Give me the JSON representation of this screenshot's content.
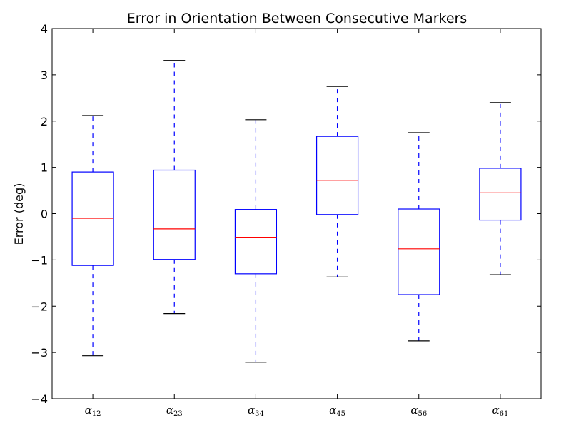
{
  "chart_data": {
    "type": "box",
    "title": "Error in Orientation Between Consecutive Markers",
    "xlabel": "",
    "ylabel": "Error (deg)",
    "ylim": [
      -4,
      4
    ],
    "yticks": [
      -4,
      -3,
      -2,
      -1,
      0,
      1,
      2,
      3,
      4
    ],
    "ytick_labels": [
      "−4",
      "−3",
      "−2",
      "−1",
      "0",
      "1",
      "2",
      "3",
      "4"
    ],
    "grid": false,
    "colors": {
      "box": "#0000ff",
      "median": "#ff0000",
      "whisker": "#0000ff",
      "cap": "#000000"
    },
    "categories": [
      {
        "symbol": "α",
        "sub": "12"
      },
      {
        "symbol": "α",
        "sub": "23"
      },
      {
        "symbol": "α",
        "sub": "34"
      },
      {
        "symbol": "α",
        "sub": "45"
      },
      {
        "symbol": "α",
        "sub": "56"
      },
      {
        "symbol": "α",
        "sub": "61"
      }
    ],
    "boxes": [
      {
        "whisker_low": -3.07,
        "q1": -1.12,
        "median": -0.1,
        "q3": 0.9,
        "whisker_high": 2.12
      },
      {
        "whisker_low": -2.16,
        "q1": -0.99,
        "median": -0.33,
        "q3": 0.94,
        "whisker_high": 3.31
      },
      {
        "whisker_low": -3.21,
        "q1": -1.3,
        "median": -0.51,
        "q3": 0.09,
        "whisker_high": 2.03
      },
      {
        "whisker_low": -1.37,
        "q1": -0.02,
        "median": 0.72,
        "q3": 1.67,
        "whisker_high": 2.75
      },
      {
        "whisker_low": -2.75,
        "q1": -1.75,
        "median": -0.76,
        "q3": 0.1,
        "whisker_high": 1.75
      },
      {
        "whisker_low": -1.32,
        "q1": -0.14,
        "median": 0.45,
        "q3": 0.98,
        "whisker_high": 2.4
      }
    ]
  }
}
